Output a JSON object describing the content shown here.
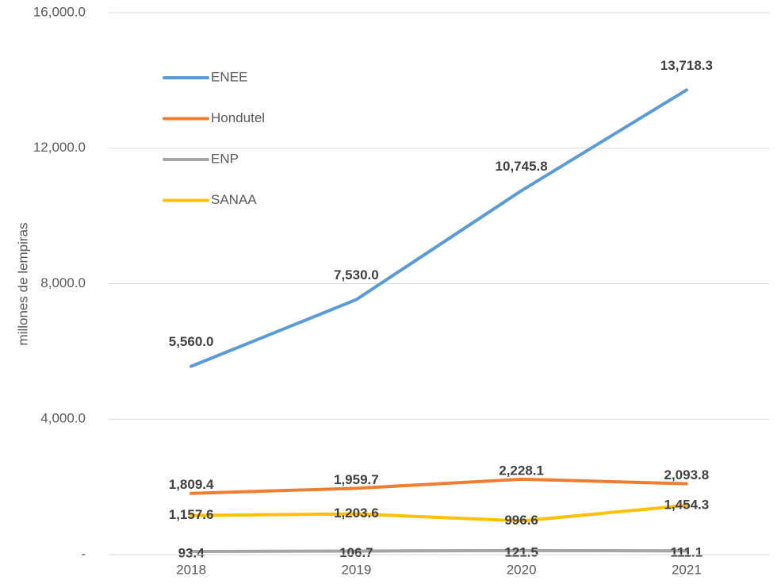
{
  "chart_data": {
    "type": "line",
    "y_label": "millones de lempiras",
    "categories": [
      "2018",
      "2019",
      "2020",
      "2021"
    ],
    "series": [
      {
        "name": "ENEE",
        "color": "#5b9bd5",
        "values": [
          5560.0,
          7530.0,
          10745.8,
          13718.3
        ],
        "value_labels": [
          "5,560.0",
          "7,530.0",
          "10,745.8",
          "13,718.3"
        ]
      },
      {
        "name": "Hondutel",
        "color": "#ed7d31",
        "values": [
          1809.4,
          1959.7,
          2228.1,
          2093.8
        ],
        "value_labels": [
          "1,809.4",
          "1,959.7",
          "2,228.1",
          "2,093.8"
        ]
      },
      {
        "name": "ENP",
        "color": "#a5a5a5",
        "values": [
          93.4,
          106.7,
          121.5,
          111.1
        ]
      },
      {
        "name": "SANAA",
        "color": "#ffc000",
        "values": [
          1157.6,
          1203.6,
          996.6,
          1454.3
        ],
        "value_labels": [
          "1,157.6",
          "1,203.6",
          "996.6",
          "1,454.3"
        ]
      }
    ],
    "ylim": [
      0,
      16000
    ],
    "yticks": [
      {
        "value": 0,
        "label": "-"
      },
      {
        "value": 4000,
        "label": "4,000.0"
      },
      {
        "value": 8000,
        "label": "8,000.0"
      },
      {
        "value": 12000,
        "label": "12,000.0"
      },
      {
        "value": 16000,
        "label": "16,000.0"
      }
    ],
    "grid": true,
    "legend": "upper left"
  }
}
